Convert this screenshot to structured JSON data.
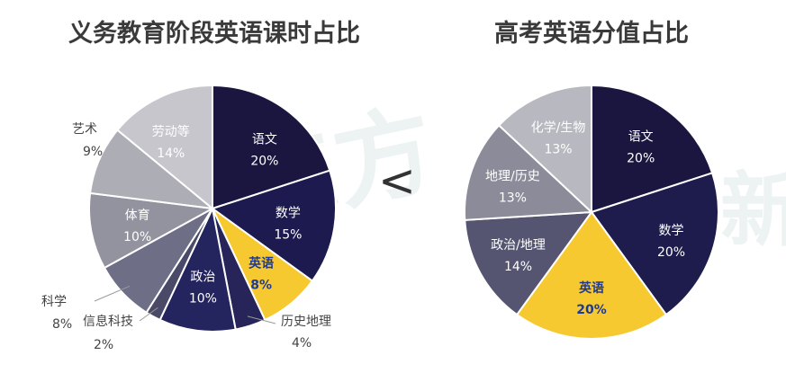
{
  "comparator": "<",
  "chart_data": [
    {
      "type": "pie",
      "title": "义务教育阶段英语课时占比",
      "slices": [
        {
          "label": "语文",
          "value": 20,
          "display": "20%",
          "color": "#1a1640"
        },
        {
          "label": "数学",
          "value": 15,
          "display": "15%",
          "color": "#1c1a4e"
        },
        {
          "label": "英语",
          "value": 8,
          "display": "8%",
          "color": "#f7c930",
          "highlight": true
        },
        {
          "label": "历史地理",
          "value": 4,
          "display": "4%",
          "color": "#262458"
        },
        {
          "label": "政治",
          "value": 10,
          "display": "10%",
          "color": "#24245e"
        },
        {
          "label": "信息科技",
          "value": 2,
          "display": "2%",
          "color": "#4a4a68"
        },
        {
          "label": "科学",
          "value": 8,
          "display": "8%",
          "color": "#6e6e86"
        },
        {
          "label": "体育",
          "value": 10,
          "display": "10%",
          "color": "#93939f"
        },
        {
          "label": "艺术",
          "value": 9,
          "display": "9%",
          "color": "#adadb5"
        },
        {
          "label": "劳动等",
          "value": 14,
          "display": "14%",
          "color": "#c6c6cc"
        }
      ]
    },
    {
      "type": "pie",
      "title": "高考英语分值占比",
      "slices": [
        {
          "label": "语文",
          "value": 20,
          "display": "20%",
          "color": "#1a1640"
        },
        {
          "label": "数学",
          "value": 20,
          "display": "20%",
          "color": "#1e1c4c"
        },
        {
          "label": "英语",
          "value": 20,
          "display": "20%",
          "color": "#f7c930",
          "highlight": true
        },
        {
          "label": "政治/地理",
          "value": 14,
          "display": "14%",
          "color": "#555572"
        },
        {
          "label": "地理/历史",
          "value": 13,
          "display": "13%",
          "color": "#8b8b99"
        },
        {
          "label": "化学/生物",
          "value": 13,
          "display": "13%",
          "color": "#b8b8c0"
        }
      ]
    }
  ]
}
